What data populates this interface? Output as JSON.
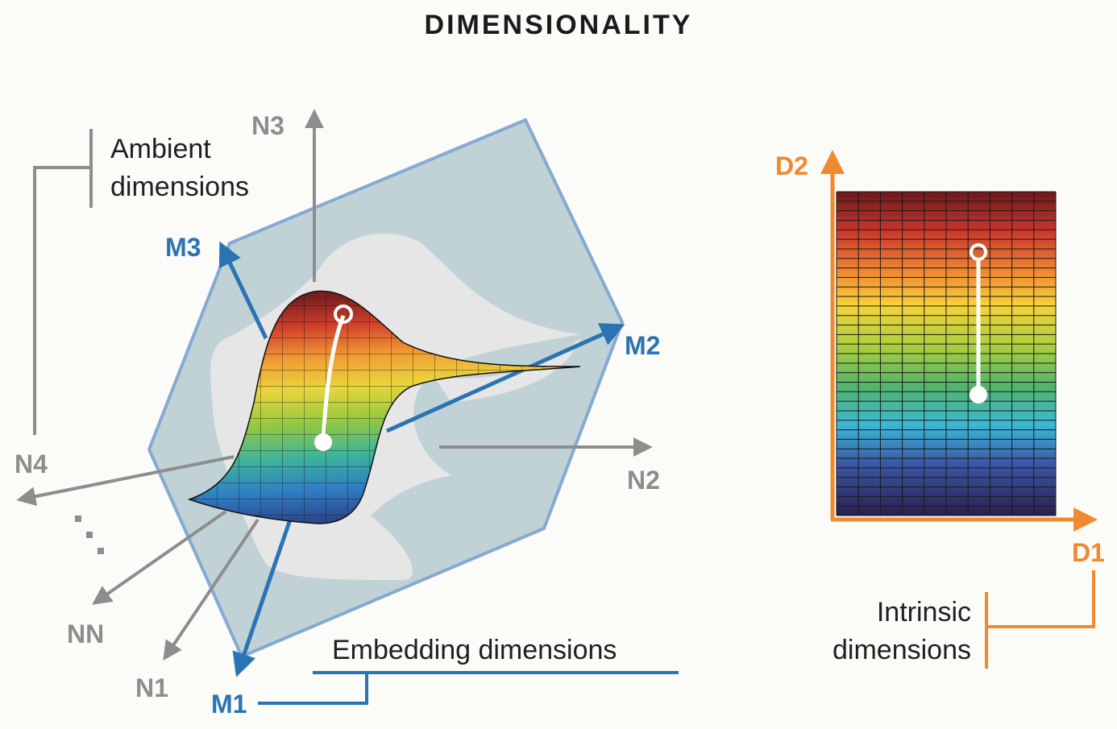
{
  "title": "DIMENSIONALITY",
  "ambient": {
    "label_line1": "Ambient",
    "label_line2": "dimensions",
    "axes": [
      "N1",
      "N2",
      "N3",
      "N4",
      "NN"
    ],
    "ellipsis": "...",
    "color": "#8d8d8d"
  },
  "embedding": {
    "label": "Embedding dimensions",
    "axes": [
      "M1",
      "M2",
      "M3"
    ],
    "color": "#2a74b3"
  },
  "intrinsic": {
    "label_line1": "Intrinsic",
    "label_line2": "dimensions",
    "axes": [
      "D1",
      "D2"
    ],
    "color": "#ee8a2f"
  },
  "colors": {
    "plane_fill": "#b9cdd0",
    "plane_edge": "#86a9d4",
    "shadow": "#e6e6e6",
    "marker": "#ffffff"
  },
  "colormap": "spectral (dark red top → purple bottom)"
}
